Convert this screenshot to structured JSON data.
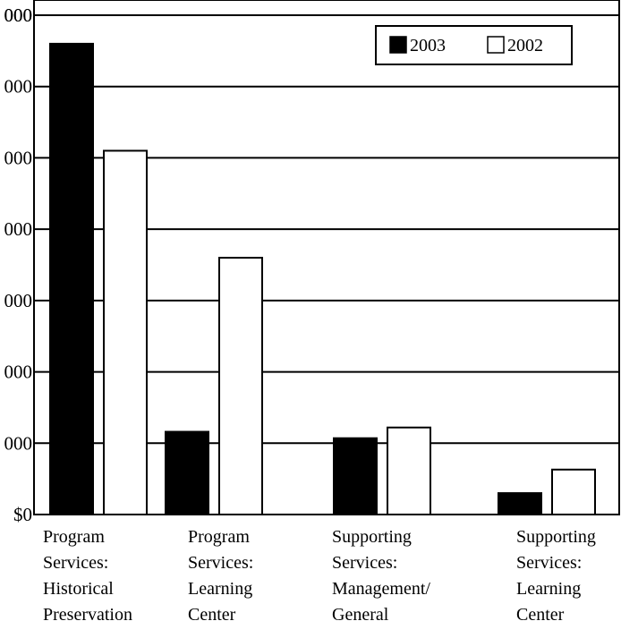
{
  "chart_data": {
    "type": "bar",
    "categories": [
      [
        "Program",
        "Services:",
        "Historical",
        "Preservation"
      ],
      [
        "Program",
        "Services:",
        "Learning",
        "Center"
      ],
      [
        "Supporting",
        "Services:",
        "Management/",
        "General"
      ],
      [
        "Supporting",
        "Services:",
        "Learning",
        "Center"
      ]
    ],
    "y_tick_labels": [
      "$0",
      "000",
      "000",
      "000",
      "000",
      "000",
      "000",
      "000"
    ],
    "ylim": [
      0,
      7
    ],
    "grid": true,
    "legend_position": "top-right",
    "series": [
      {
        "name": "2003",
        "color": "#000000",
        "values": [
          6.6,
          1.16,
          1.07,
          0.3
        ]
      },
      {
        "name": "2002",
        "color": "#ffffff",
        "values": [
          5.1,
          3.6,
          1.22,
          0.63
        ]
      }
    ]
  }
}
